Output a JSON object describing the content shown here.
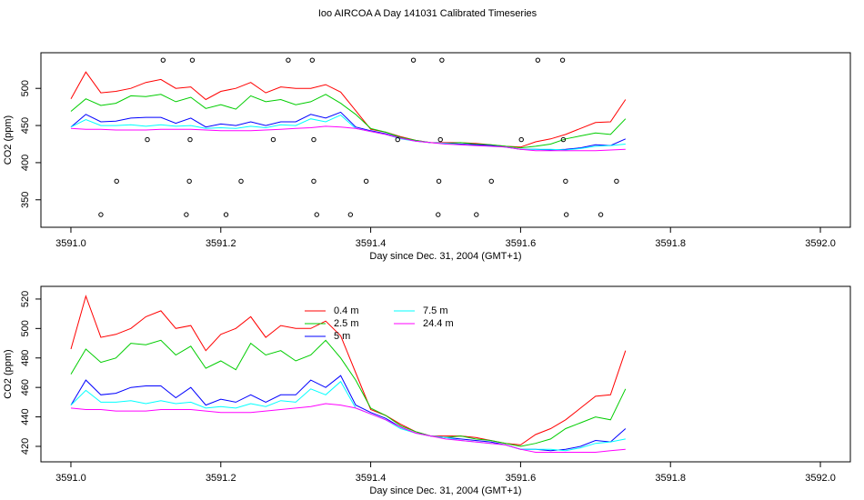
{
  "chart_data": [
    {
      "type": "line",
      "title": "Ioo AIRCOA A  Day 141031  Calibrated Timeseries",
      "x_label": "Day since Dec. 31, 2004 (GMT+1)",
      "y_label": "CO2 (ppm)",
      "xlim": [
        3590.96,
        3592.04
      ],
      "ylim": [
        313,
        548
      ],
      "xticks": [
        {
          "value": 3591.0,
          "label": "3591.0"
        },
        3591.2,
        3591.4,
        3591.6,
        3591.8,
        {
          "value": 3592.0,
          "label": "3592.0"
        }
      ],
      "yticks": [
        350,
        400,
        450,
        500
      ],
      "x": [
        3591.0,
        3591.02,
        3591.04,
        3591.06,
        3591.08,
        3591.1,
        3591.12,
        3591.14,
        3591.16,
        3591.18,
        3591.2,
        3591.22,
        3591.24,
        3591.26,
        3591.28,
        3591.3,
        3591.32,
        3591.34,
        3591.36,
        3591.38,
        3591.4,
        3591.42,
        3591.44,
        3591.46,
        3591.48,
        3591.5,
        3591.52,
        3591.54,
        3591.56,
        3591.58,
        3591.6,
        3591.62,
        3591.64,
        3591.66,
        3591.68,
        3591.7,
        3591.72,
        3591.74
      ],
      "series": [
        {
          "color": "#ff0000",
          "values": [
            486,
            522,
            494,
            496,
            500,
            508,
            512,
            500,
            502,
            485,
            496,
            500,
            508,
            494,
            502,
            500,
            500,
            505,
            495,
            470,
            445,
            441,
            435,
            430,
            427,
            427,
            427,
            426,
            424,
            422,
            421,
            428,
            432,
            438,
            446,
            454,
            455,
            485
          ]
        },
        {
          "color": "#00cd00",
          "values": [
            469,
            486,
            477,
            480,
            490,
            489,
            492,
            482,
            488,
            473,
            478,
            472,
            490,
            482,
            485,
            478,
            482,
            492,
            480,
            465,
            446,
            441,
            434,
            430,
            427,
            426,
            427,
            425,
            424,
            422,
            420,
            422,
            425,
            432,
            436,
            440,
            438,
            459
          ]
        },
        {
          "color": "#0000ff",
          "values": [
            448,
            465,
            455,
            456,
            460,
            461,
            461,
            453,
            460,
            448,
            452,
            450,
            455,
            450,
            455,
            455,
            465,
            460,
            468,
            448,
            443,
            439,
            433,
            429,
            427,
            426,
            425,
            424,
            423,
            421,
            418,
            418,
            417,
            418,
            420,
            424,
            423,
            432
          ]
        },
        {
          "color": "#00ffff",
          "values": [
            448,
            458,
            450,
            450,
            451,
            449,
            451,
            449,
            450,
            446,
            447,
            446,
            449,
            447,
            451,
            450,
            459,
            455,
            464,
            446,
            442,
            438,
            432,
            429,
            427,
            426,
            424,
            423,
            422,
            421,
            418,
            418,
            418,
            417,
            419,
            422,
            423,
            425
          ]
        },
        {
          "color": "#ff00ff",
          "values": [
            446,
            445,
            445,
            444,
            444,
            444,
            445,
            445,
            445,
            444,
            443,
            443,
            443,
            444,
            445,
            446,
            447,
            449,
            448,
            446,
            442,
            438,
            433,
            429,
            427,
            425,
            424,
            423,
            422,
            421,
            418,
            416,
            416,
            416,
            416,
            416,
            417,
            418
          ]
        }
      ],
      "points": {
        "color": "#000000",
        "x": [
          3591.123,
          3591.162,
          3591.29,
          3591.322,
          3591.457,
          3591.495,
          3591.623,
          3591.656,
          3591.102,
          3591.159,
          3591.27,
          3591.324,
          3591.436,
          3591.493,
          3591.601,
          3591.657,
          3591.061,
          3591.158,
          3591.227,
          3591.324,
          3591.394,
          3591.491,
          3591.561,
          3591.66,
          3591.728,
          3591.04,
          3591.154,
          3591.207,
          3591.328,
          3591.373,
          3591.49,
          3591.541,
          3591.661,
          3591.707
        ],
        "y": [
          538,
          538,
          538,
          538,
          538,
          538,
          538,
          538,
          431,
          431,
          431,
          431,
          431,
          431,
          431,
          431,
          375,
          375,
          375,
          375,
          375,
          375,
          375,
          375,
          375,
          330,
          330,
          330,
          330,
          330,
          330,
          330,
          330,
          330
        ]
      }
    },
    {
      "type": "line",
      "x_label": "Day since Dec. 31, 2004 (GMT+1)",
      "y_label": "CO2 (ppm)",
      "xlim": [
        3590.96,
        3592.04
      ],
      "ylim": [
        409.5,
        528.6
      ],
      "xticks": [
        {
          "value": 3591.0,
          "label": "3591.0"
        },
        3591.2,
        3591.4,
        3591.6,
        3591.8,
        {
          "value": 3592.0,
          "label": "3592.0"
        }
      ],
      "yticks": [
        420,
        440,
        460,
        480,
        500,
        520
      ],
      "x": [
        3591.0,
        3591.02,
        3591.04,
        3591.06,
        3591.08,
        3591.1,
        3591.12,
        3591.14,
        3591.16,
        3591.18,
        3591.2,
        3591.22,
        3591.24,
        3591.26,
        3591.28,
        3591.3,
        3591.32,
        3591.34,
        3591.36,
        3591.38,
        3591.4,
        3591.42,
        3591.44,
        3591.46,
        3591.48,
        3591.5,
        3591.52,
        3591.54,
        3591.56,
        3591.58,
        3591.6,
        3591.62,
        3591.64,
        3591.66,
        3591.68,
        3591.7,
        3591.72,
        3591.74
      ],
      "series": [
        {
          "name": "0.4 m",
          "color": "#ff0000",
          "values": [
            486,
            522,
            494,
            496,
            500,
            508,
            512,
            500,
            502,
            485,
            496,
            500,
            508,
            494,
            502,
            500,
            500,
            505,
            495,
            470,
            445,
            441,
            435,
            430,
            427,
            427,
            427,
            426,
            424,
            422,
            421,
            428,
            432,
            438,
            446,
            454,
            455,
            485
          ]
        },
        {
          "name": "2.5 m",
          "color": "#00cd00",
          "values": [
            469,
            486,
            477,
            480,
            490,
            489,
            492,
            482,
            488,
            473,
            478,
            472,
            490,
            482,
            485,
            478,
            482,
            492,
            480,
            465,
            446,
            441,
            434,
            430,
            427,
            426,
            427,
            425,
            424,
            422,
            420,
            422,
            425,
            432,
            436,
            440,
            438,
            459
          ]
        },
        {
          "name": "5 m",
          "color": "#0000ff",
          "values": [
            448,
            465,
            455,
            456,
            460,
            461,
            461,
            453,
            460,
            448,
            452,
            450,
            455,
            450,
            455,
            455,
            465,
            460,
            468,
            448,
            443,
            439,
            433,
            429,
            427,
            426,
            425,
            424,
            423,
            421,
            418,
            418,
            417,
            418,
            420,
            424,
            423,
            432
          ]
        },
        {
          "name": "7.5 m",
          "color": "#00ffff",
          "values": [
            448,
            458,
            450,
            450,
            451,
            449,
            451,
            449,
            450,
            446,
            447,
            446,
            449,
            447,
            451,
            450,
            459,
            455,
            464,
            446,
            442,
            438,
            432,
            429,
            427,
            426,
            424,
            423,
            422,
            421,
            418,
            418,
            418,
            417,
            419,
            422,
            423,
            425
          ]
        },
        {
          "name": "24.4 m",
          "color": "#ff00ff",
          "values": [
            446,
            445,
            445,
            444,
            444,
            444,
            445,
            445,
            445,
            444,
            443,
            443,
            443,
            444,
            445,
            446,
            447,
            449,
            448,
            446,
            442,
            438,
            433,
            429,
            427,
            425,
            424,
            423,
            422,
            421,
            418,
            416,
            416,
            416,
            416,
            416,
            417,
            418
          ]
        }
      ]
    }
  ]
}
